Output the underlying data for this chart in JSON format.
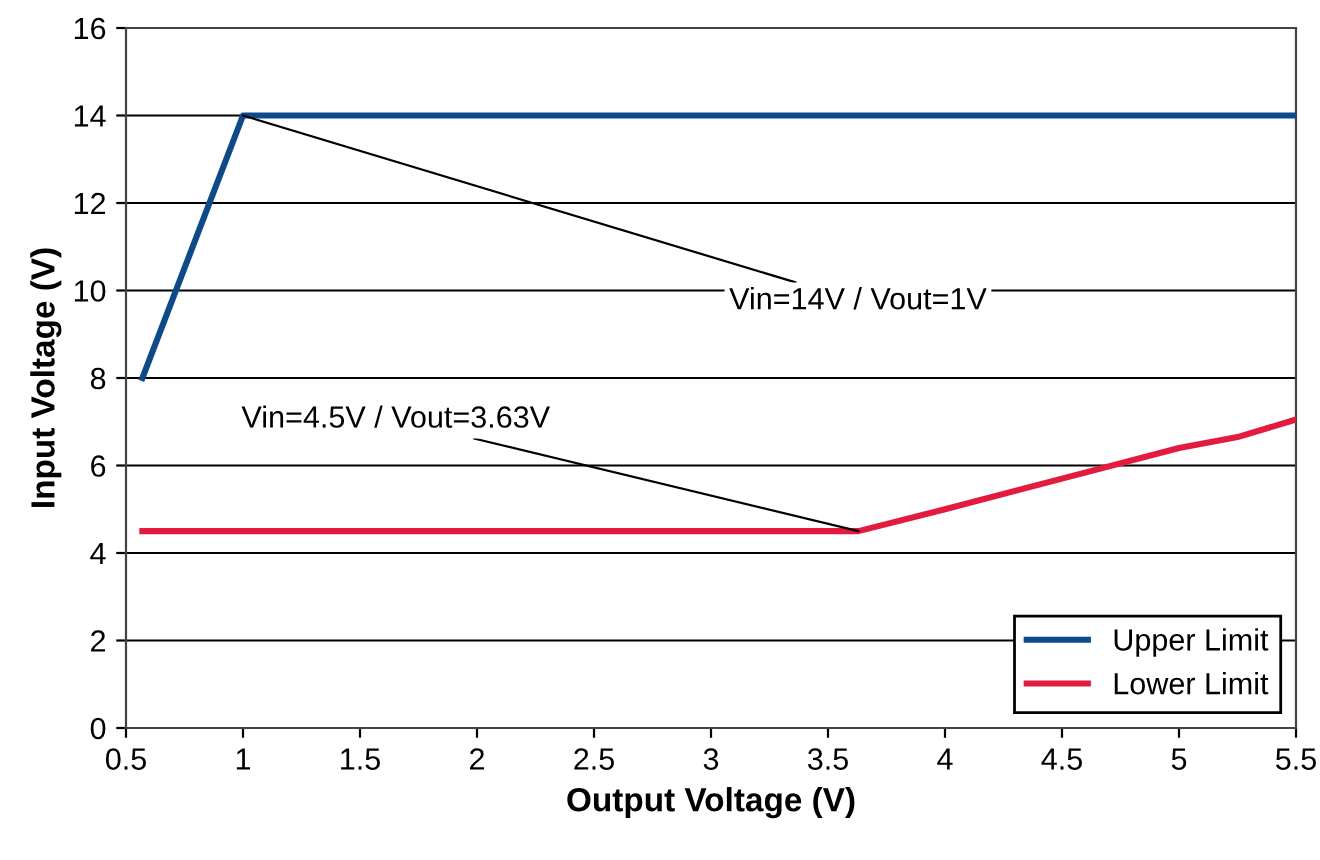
{
  "chart_data": {
    "type": "line",
    "xlabel": "Output Voltage (V)",
    "ylabel": "Input Voltage (V)",
    "series": [
      {
        "name": "Upper Limit",
        "color": "#0c4a8c",
        "x": [
          0.57,
          1,
          5.5
        ],
        "values": [
          8,
          14,
          14
        ]
      },
      {
        "name": "Lower Limit",
        "color": "#e31b3f",
        "x": [
          0.57,
          3.63,
          4,
          4.5,
          5,
          5.25,
          5.5
        ],
        "values": [
          4.5,
          4.5,
          5.0,
          5.7,
          6.4,
          6.65,
          7.05
        ]
      }
    ],
    "annotations": [
      {
        "text": "Vin=14V / Vout=1V",
        "x": 1,
        "y": 14
      },
      {
        "text": "Vin=4.5V / Vout=3.63V",
        "x": 3.63,
        "y": 4.5
      }
    ],
    "xlim": [
      0.5,
      5.5
    ],
    "xticks": [
      0.5,
      1,
      1.5,
      2,
      2.5,
      3,
      3.5,
      4,
      4.5,
      5,
      5.5
    ],
    "ylim": [
      0,
      16
    ],
    "yticks": [
      0,
      2,
      4,
      6,
      8,
      10,
      12,
      14,
      16
    ],
    "grid": "y",
    "legend": "bottom right",
    "marker": "none",
    "line_style": "solid"
  }
}
